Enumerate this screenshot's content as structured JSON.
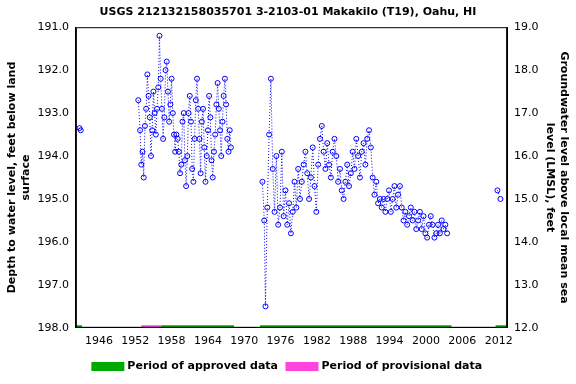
{
  "chart_data": {
    "type": "line",
    "title": "USGS 212132158035701 3-2103-01 Makakilo (T19), Oahu, HI",
    "y_label": [
      "Depth to water level, feet below land",
      "surface"
    ],
    "y2_label": [
      "Groundwater level above local mean sea",
      "level (LMSL), feet"
    ],
    "xlim": [
      1942.2,
      2013.4
    ],
    "xticks": [
      1946,
      1952,
      1958,
      1964,
      1970,
      1976,
      1982,
      1988,
      1994,
      2000,
      2006,
      2012
    ],
    "ylim": [
      198,
      191
    ],
    "yticks": [
      {
        "value": 191,
        "label": "191.0"
      },
      {
        "value": 192,
        "label": "192.0"
      },
      {
        "value": 193,
        "label": "193.0"
      },
      {
        "value": 194,
        "label": "194.0"
      },
      {
        "value": 195,
        "label": "195.0"
      },
      {
        "value": 196,
        "label": "196.0"
      },
      {
        "value": 197,
        "label": "197.0"
      },
      {
        "value": 198,
        "label": "198.0"
      }
    ],
    "y2lim": [
      12,
      19
    ],
    "y2ticks": [
      {
        "value": 12,
        "label": "12.0"
      },
      {
        "value": 13,
        "label": "13.0"
      },
      {
        "value": 14,
        "label": "14.0"
      },
      {
        "value": 15,
        "label": "15.0"
      },
      {
        "value": 16,
        "label": "16.0"
      },
      {
        "value": 17,
        "label": "17.0"
      },
      {
        "value": 18,
        "label": "18.0"
      },
      {
        "value": 19,
        "label": "19.0"
      }
    ],
    "grid": false,
    "legend": "bottom",
    "series": [
      {
        "color": "#0000ff",
        "marker": "circle",
        "line_style": "dotted",
        "x": [
          1942.8,
          1943.0,
          1948.0,
          1952.5,
          1952.8,
          1953.0,
          1953.2,
          1953.4,
          1953.6,
          1953.8,
          1954.0,
          1954.2,
          1954.4,
          1954.6,
          1954.8,
          1955.0,
          1955.2,
          1955.4,
          1955.6,
          1955.8,
          1956.0,
          1956.2,
          1956.4,
          1956.6,
          1956.8,
          1957.0,
          1957.2,
          1957.4,
          1957.6,
          1957.8,
          1958.0,
          1958.2,
          1958.4,
          1958.6,
          1958.8,
          1959.0,
          1959.2,
          1959.4,
          1959.6,
          1959.8,
          1960.0,
          1960.2,
          1960.4,
          1960.6,
          1960.8,
          1961.0,
          1961.2,
          1961.4,
          1961.6,
          1961.8,
          1962.0,
          1962.2,
          1962.4,
          1962.6,
          1962.8,
          1963.0,
          1963.2,
          1963.4,
          1963.6,
          1963.8,
          1964.0,
          1964.2,
          1964.4,
          1964.6,
          1964.8,
          1965.0,
          1965.2,
          1965.4,
          1965.6,
          1965.8,
          1966.0,
          1966.2,
          1966.4,
          1966.6,
          1966.8,
          1967.0,
          1967.2,
          1967.4,
          1967.6,
          1967.8,
          1970.0,
          1973.0,
          1973.3,
          1973.5,
          1973.8,
          1974.1,
          1974.4,
          1974.7,
          1975.0,
          1975.3,
          1975.6,
          1975.9,
          1976.2,
          1976.5,
          1976.8,
          1977.1,
          1977.4,
          1977.7,
          1978.0,
          1978.3,
          1978.6,
          1978.9,
          1979.2,
          1979.5,
          1979.8,
          1980.1,
          1980.4,
          1980.7,
          1981.0,
          1981.3,
          1981.6,
          1981.9,
          1982.2,
          1982.5,
          1982.8,
          1983.1,
          1983.4,
          1983.7,
          1984.0,
          1984.3,
          1984.6,
          1984.9,
          1985.2,
          1985.5,
          1985.8,
          1986.1,
          1986.4,
          1986.7,
          1987.0,
          1987.3,
          1987.6,
          1987.9,
          1988.2,
          1988.5,
          1988.8,
          1989.1,
          1989.4,
          1989.7,
          1990.0,
          1990.3,
          1990.6,
          1990.9,
          1991.2,
          1991.5,
          1991.8,
          1992.1,
          1992.4,
          1992.7,
          1993.0,
          1993.3,
          1993.6,
          1993.9,
          1994.2,
          1994.5,
          1994.8,
          1995.1,
          1995.4,
          1995.7,
          1996.0,
          1996.3,
          1996.6,
          1996.9,
          1997.2,
          1997.5,
          1997.8,
          1998.1,
          1998.4,
          1998.7,
          1999.0,
          1999.3,
          1999.6,
          1999.9,
          2000.2,
          2000.5,
          2000.8,
          2001.1,
          2001.4,
          2001.7,
          2002.0,
          2002.3,
          2002.6,
          2002.9,
          2003.2,
          2003.5,
          2008.0,
          2011.8,
          2012.3
        ],
        "values": [
          193.35,
          193.4,
          null,
          192.7,
          193.4,
          194.2,
          193.9,
          194.5,
          193.3,
          192.9,
          192.1,
          192.6,
          193.1,
          194.0,
          193.4,
          192.5,
          193.0,
          193.5,
          192.9,
          192.4,
          191.2,
          192.2,
          192.9,
          193.6,
          193.1,
          192.0,
          191.8,
          192.5,
          193.2,
          192.8,
          192.2,
          193.0,
          193.5,
          193.9,
          193.5,
          193.6,
          193.9,
          194.4,
          194.2,
          193.2,
          193.0,
          194.1,
          194.7,
          194.0,
          193.0,
          192.6,
          193.2,
          194.3,
          194.6,
          193.6,
          192.7,
          192.2,
          192.9,
          193.6,
          194.4,
          193.2,
          192.9,
          193.8,
          194.6,
          194.0,
          193.4,
          192.6,
          193.1,
          194.1,
          194.5,
          193.9,
          193.5,
          192.8,
          192.3,
          192.9,
          193.4,
          194.0,
          193.2,
          192.6,
          192.2,
          192.8,
          193.6,
          193.9,
          193.4,
          193.8,
          null,
          194.6,
          195.5,
          197.5,
          195.2,
          193.5,
          192.2,
          194.3,
          195.3,
          194.0,
          195.6,
          195.2,
          193.9,
          195.4,
          194.8,
          195.6,
          195.1,
          195.8,
          195.3,
          194.6,
          195.2,
          194.3,
          195.0,
          194.6,
          194.2,
          193.9,
          194.4,
          195.0,
          194.5,
          193.8,
          194.7,
          195.3,
          194.2,
          193.6,
          193.3,
          193.9,
          194.3,
          193.7,
          194.2,
          194.5,
          193.9,
          193.6,
          194.0,
          194.6,
          194.3,
          194.8,
          195.0,
          194.6,
          194.2,
          194.7,
          194.4,
          193.9,
          194.3,
          193.6,
          194.0,
          194.5,
          193.9,
          193.7,
          194.2,
          193.6,
          193.4,
          193.8,
          194.5,
          194.9,
          194.6,
          195.1,
          195.0,
          195.2,
          195.0,
          195.3,
          195.0,
          194.8,
          195.3,
          195.0,
          194.7,
          195.2,
          194.9,
          194.7,
          195.2,
          195.5,
          195.3,
          195.6,
          195.4,
          195.2,
          195.5,
          195.3,
          195.7,
          195.5,
          195.3,
          195.7,
          195.4,
          195.8,
          195.9,
          195.6,
          195.4,
          195.6,
          195.9,
          195.8,
          195.6,
          195.8,
          195.5,
          195.7,
          195.6,
          195.8,
          null,
          194.8,
          195.0
        ]
      },
      {
        "name": "Period of approved data",
        "color": "#00aa00",
        "marker": "none",
        "line_style": "solid",
        "x": [
          1942.2,
          1943.2,
          1943.2,
          1956.4,
          1968.3,
          1968.3,
          1972.6,
          2004.2,
          2004.2,
          2011.5,
          2013.4
        ],
        "values": [
          198,
          198,
          null,
          198,
          198,
          null,
          198,
          198,
          null,
          198,
          198
        ]
      },
      {
        "name": "Period of provisional data",
        "color": "#ff44dd",
        "marker": "none",
        "line_style": "solid",
        "x": [
          1953.0,
          1956.4
        ],
        "values": [
          198,
          198
        ]
      }
    ]
  }
}
